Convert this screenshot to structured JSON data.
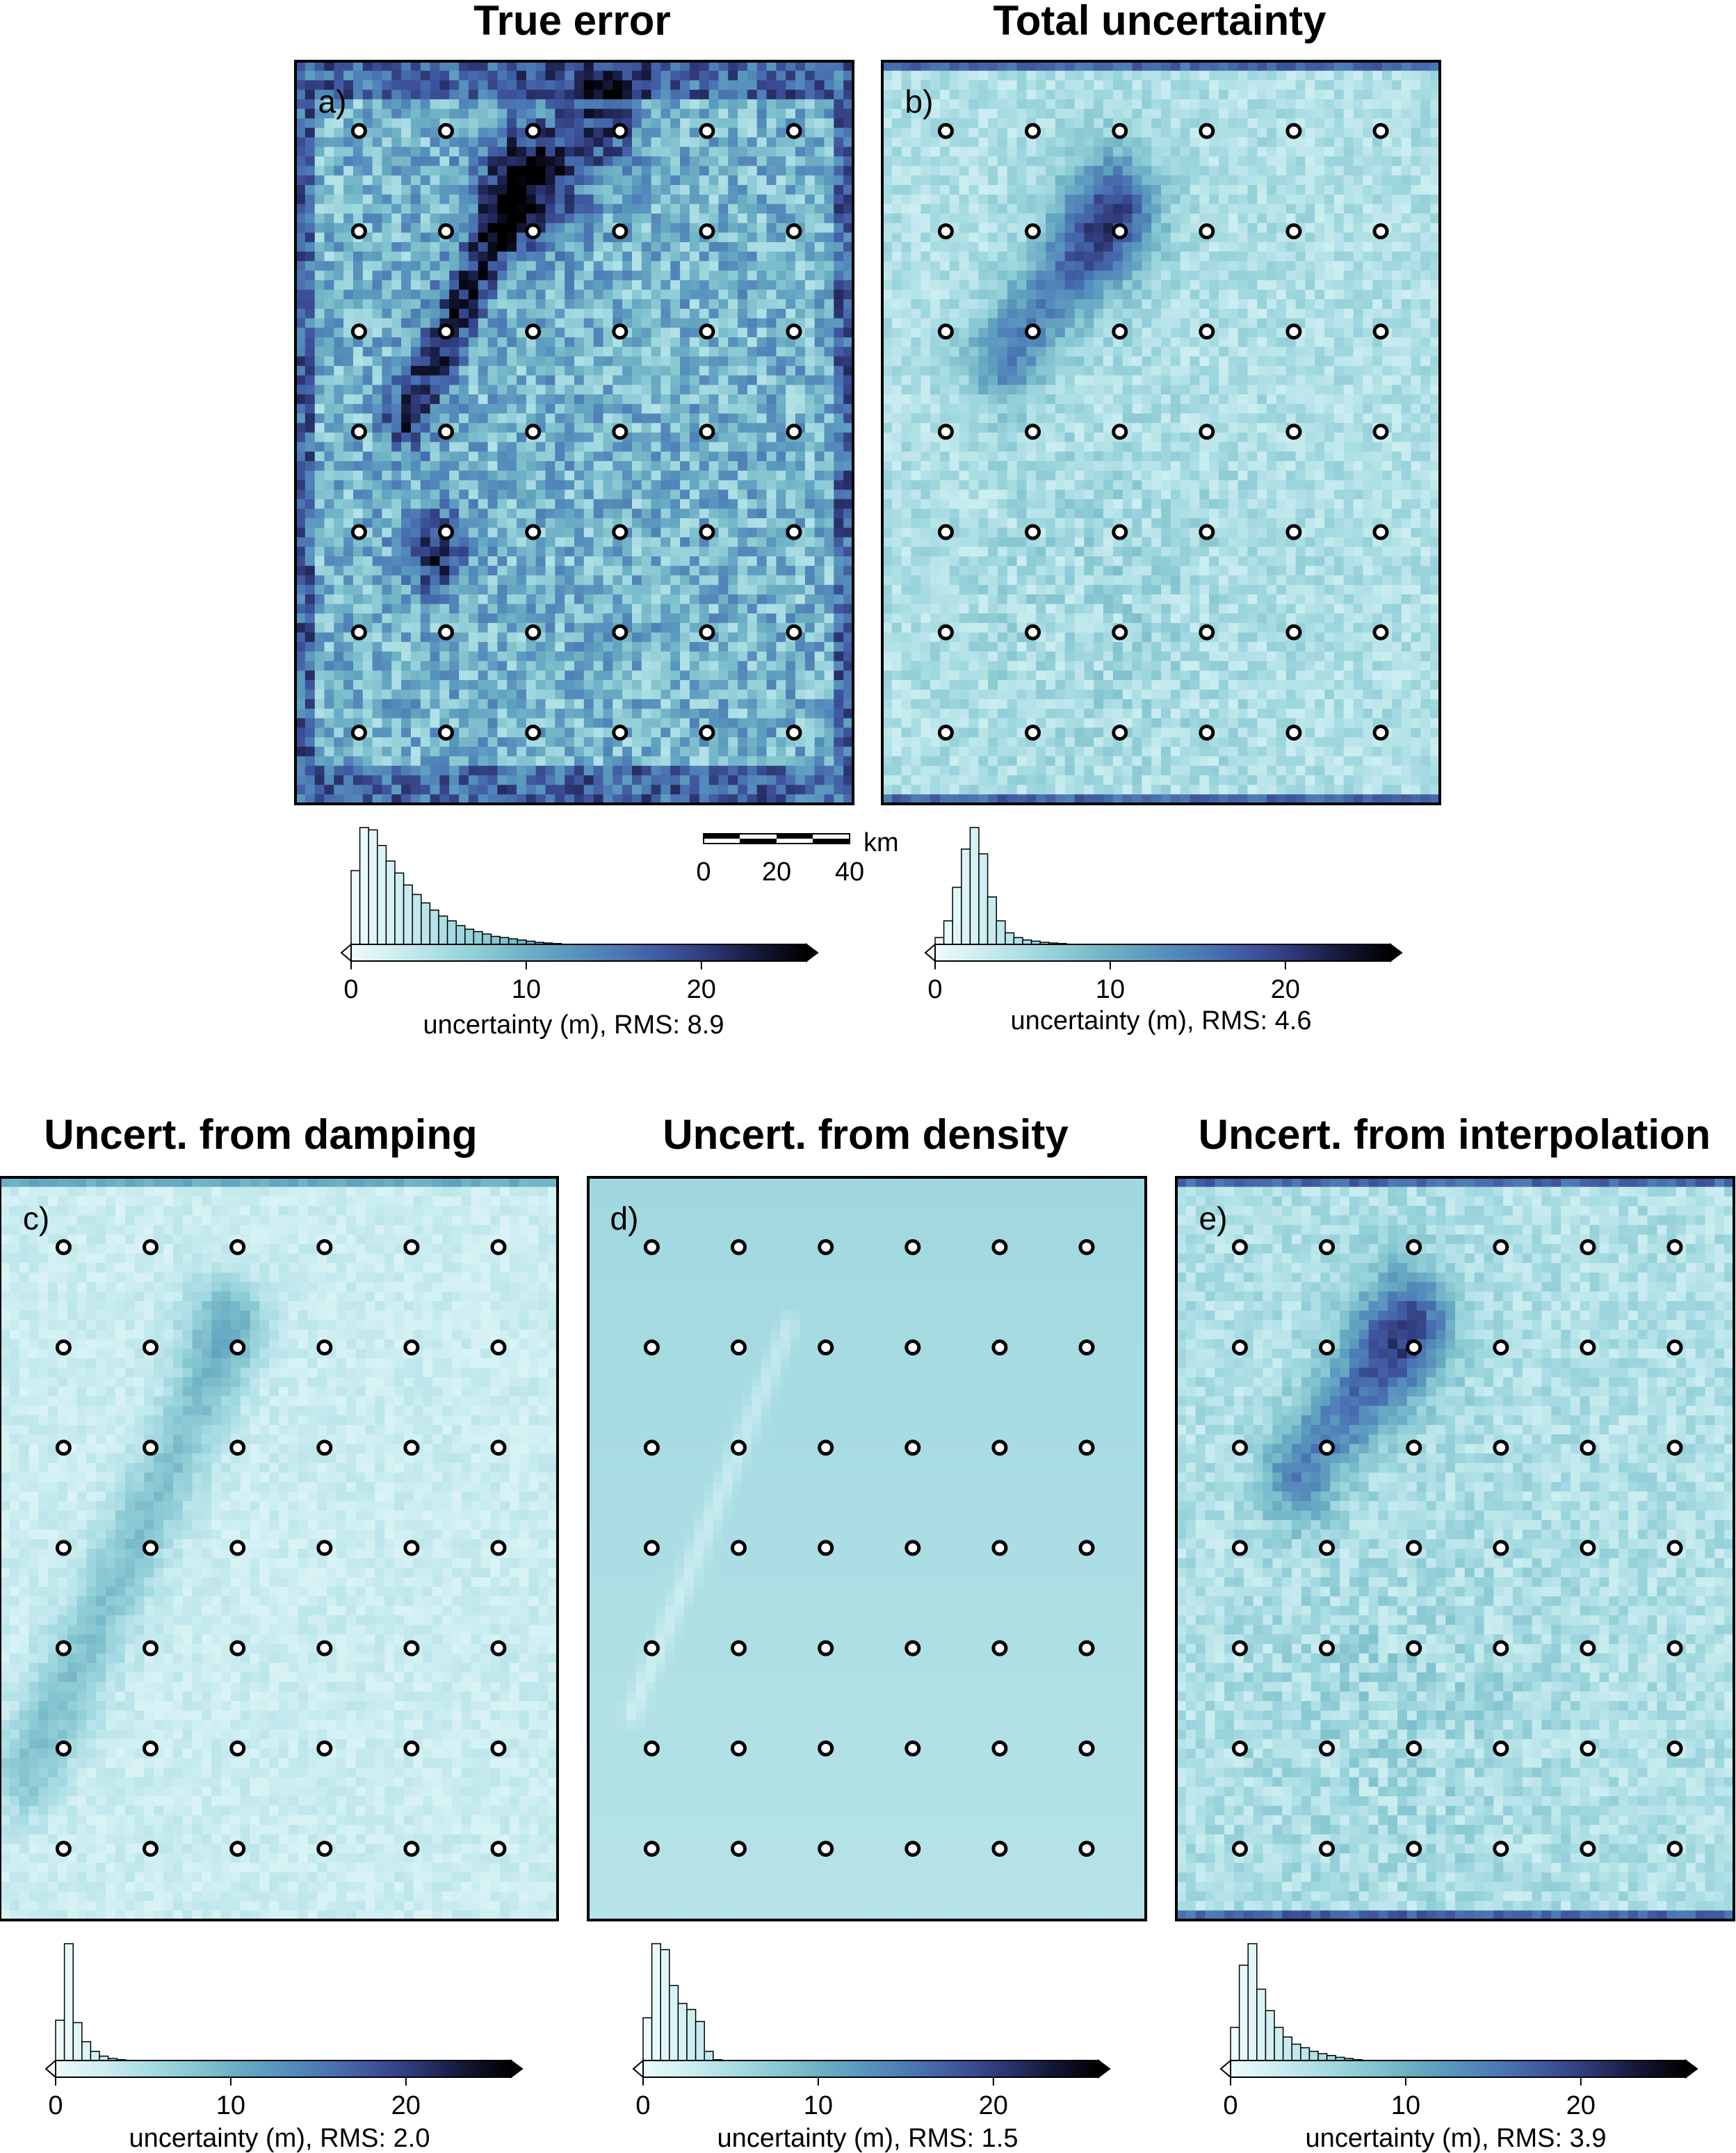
{
  "colors": {
    "colormap": [
      "#eefbfc",
      "#cdeef1",
      "#a9dde3",
      "#88c8d2",
      "#6aadc3",
      "#5691bd",
      "#4a74b2",
      "#3d539c",
      "#2b3470",
      "#121633",
      "#000000"
    ],
    "station_stroke": "#000000",
    "station_fill": "#ffffff",
    "frame": "#000000"
  },
  "colorbar_ticks": [
    "0",
    "10",
    "20"
  ],
  "scalebar": {
    "ticks": [
      "0",
      "20",
      "40"
    ],
    "unit": "km"
  },
  "panels": [
    {
      "id": "a",
      "label": "a)",
      "title": "True error",
      "xlabel": "uncertainty (m), RMS: 8.9",
      "rms": 8.9,
      "pattern": "true_error",
      "histogram": [
        0.64,
        1.0,
        0.98,
        0.85,
        0.72,
        0.62,
        0.52,
        0.44,
        0.37,
        0.31,
        0.26,
        0.22,
        0.18,
        0.15,
        0.13,
        0.11,
        0.09,
        0.08,
        0.07,
        0.06,
        0.05,
        0.04,
        0.035,
        0.03,
        0.025,
        0.02,
        0.018,
        0.015,
        0.012,
        0.01,
        0.008,
        0.006,
        0.005,
        0.004,
        0.003,
        0.002
      ]
    },
    {
      "id": "b",
      "label": "b)",
      "title": "Total uncertainty",
      "xlabel": "uncertainty (m), RMS: 4.6",
      "rms": 4.6,
      "pattern": "total",
      "histogram": [
        0.08,
        0.22,
        0.5,
        0.82,
        1.0,
        0.78,
        0.42,
        0.22,
        0.12,
        0.08,
        0.06,
        0.05,
        0.04,
        0.035,
        0.03,
        0.025,
        0.02,
        0.015,
        0.01,
        0.008,
        0.006,
        0.004,
        0.003,
        0.002,
        0.001
      ]
    },
    {
      "id": "c",
      "label": "c)",
      "title": "Uncert. from damping",
      "xlabel": "uncertainty (m), RMS: 2.0",
      "rms": 2.0,
      "pattern": "damping",
      "histogram": [
        0.36,
        1.0,
        0.34,
        0.18,
        0.1,
        0.06,
        0.04,
        0.03,
        0.02,
        0.015,
        0.01,
        0.008,
        0.006,
        0.004,
        0.003,
        0.002
      ]
    },
    {
      "id": "d",
      "label": "d)",
      "title": "Uncert. from density",
      "xlabel": "uncertainty (m), RMS: 1.5",
      "rms": 1.5,
      "pattern": "density",
      "histogram": [
        0.38,
        1.0,
        0.95,
        0.65,
        0.5,
        0.45,
        0.35,
        0.1,
        0.03,
        0.015,
        0.008,
        0.004
      ]
    },
    {
      "id": "e",
      "label": "e)",
      "title": "Uncert. from interpolation",
      "xlabel": "uncertainty (m), RMS: 3.9",
      "rms": 3.9,
      "pattern": "interpolation",
      "histogram": [
        0.3,
        0.82,
        1.0,
        0.62,
        0.44,
        0.3,
        0.22,
        0.16,
        0.13,
        0.1,
        0.08,
        0.065,
        0.05,
        0.04,
        0.03,
        0.025,
        0.02,
        0.016,
        0.012,
        0.01,
        0.008,
        0.006,
        0.004,
        0.003,
        0.002
      ]
    }
  ]
}
